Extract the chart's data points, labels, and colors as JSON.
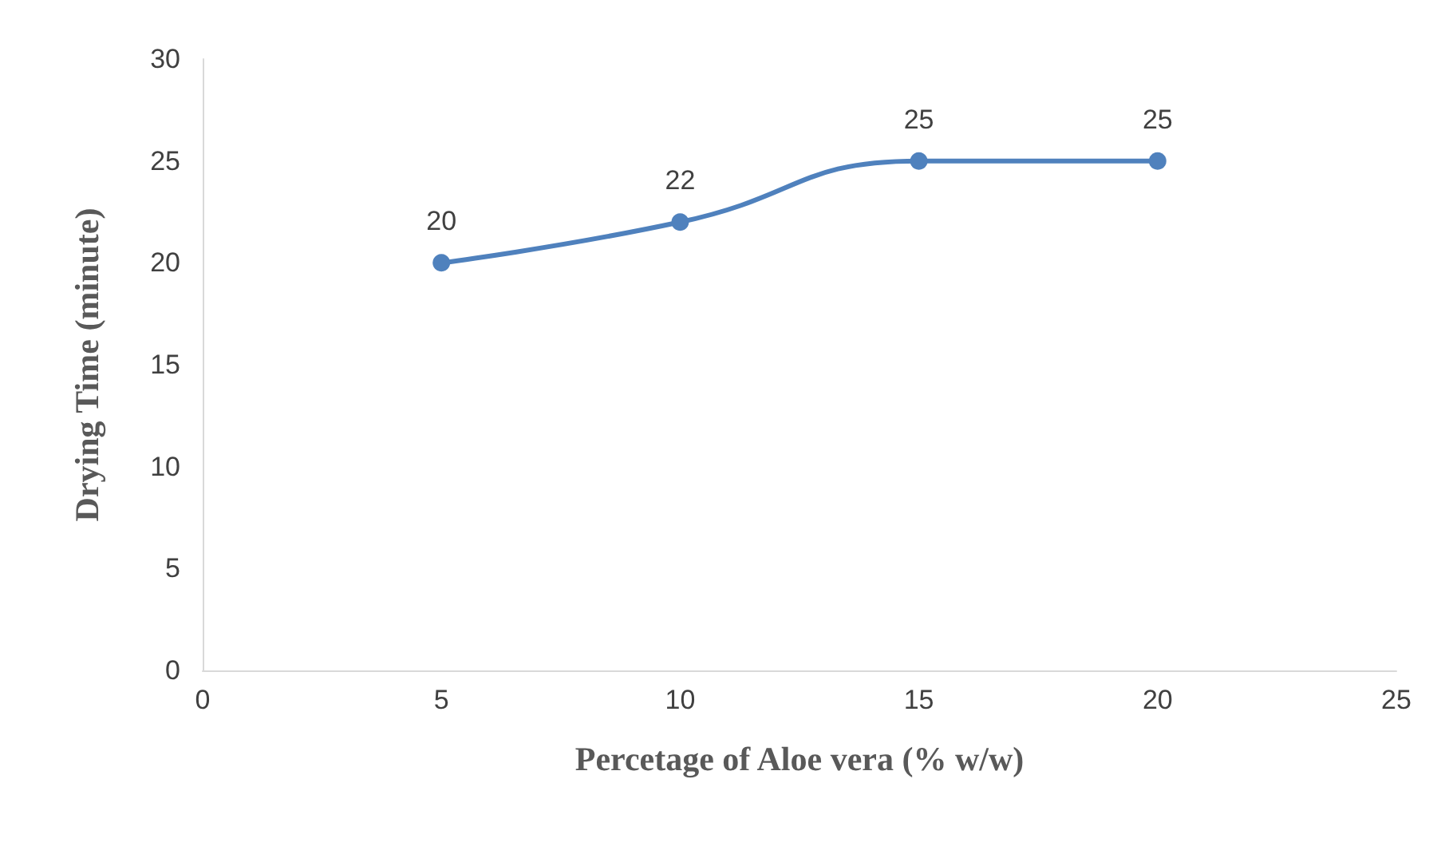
{
  "chart_data": {
    "type": "line",
    "xlabel": "Percetage of Aloe vera (% w/w)",
    "ylabel": "Drying Time (minute)",
    "x": [
      5,
      10,
      15,
      20
    ],
    "series": [
      {
        "color": "#4f81bd",
        "values": [
          20,
          22,
          25,
          25
        ]
      }
    ],
    "xlim": [
      0,
      25
    ],
    "xticks": [
      0,
      5,
      10,
      15,
      20,
      25
    ],
    "ylim": [
      0,
      30
    ],
    "yticks": [
      0,
      5,
      10,
      15,
      20,
      25,
      30
    ],
    "data_labels": true,
    "marker": "circle",
    "line_style": "solid",
    "grid": false
  }
}
